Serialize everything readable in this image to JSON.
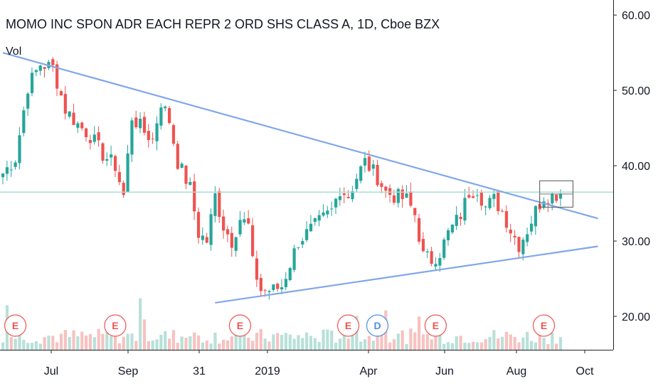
{
  "chart_data": {
    "type": "candlestick",
    "title": "MOMO INC SPON ADR EACH REPR 2 ORD SHS CLASS A, 1D, Cboe BZX",
    "volume_label": "Vol",
    "interval": "1D",
    "exchange": "Cboe BZX",
    "ylim": [
      15,
      62
    ],
    "y_ticks": [
      "60.00",
      "50.00",
      "40.00",
      "30.00",
      "20.00"
    ],
    "x_ticks": [
      "Jul",
      "Sep",
      "31",
      "2019",
      "Apr",
      "Jun",
      "Aug",
      "Oct"
    ],
    "price_series": [
      [
        0,
        39.0
      ],
      [
        3,
        41.0
      ],
      [
        6,
        50.5
      ],
      [
        9,
        53.5
      ],
      [
        12,
        53.0
      ],
      [
        15,
        47.5
      ],
      [
        18,
        45.5
      ],
      [
        21,
        44.0
      ],
      [
        24,
        41.5
      ],
      [
        27,
        40.0
      ],
      [
        29,
        36.0
      ],
      [
        31,
        46.5
      ],
      [
        34,
        44.5
      ],
      [
        36,
        43.5
      ],
      [
        38,
        48.5
      ],
      [
        40,
        46.0
      ],
      [
        42,
        40.5
      ],
      [
        45,
        37.0
      ],
      [
        47,
        31.0
      ],
      [
        49,
        30.0
      ],
      [
        51,
        36.0
      ],
      [
        53,
        32.0
      ],
      [
        55,
        30.0
      ],
      [
        57,
        33.0
      ],
      [
        59,
        32.0
      ],
      [
        60,
        27.0
      ],
      [
        62,
        23.5
      ],
      [
        65,
        23.5
      ],
      [
        67,
        24.0
      ],
      [
        69,
        27.0
      ],
      [
        71,
        30.0
      ],
      [
        74,
        31.5
      ],
      [
        77,
        33.0
      ],
      [
        79,
        34.0
      ],
      [
        81,
        37.0
      ],
      [
        83,
        36.0
      ],
      [
        85,
        38.5
      ],
      [
        87,
        40.5
      ],
      [
        90,
        38.5
      ],
      [
        92,
        36.5
      ],
      [
        94,
        36.0
      ],
      [
        97,
        35.5
      ],
      [
        99,
        33.5
      ],
      [
        101,
        28.0
      ],
      [
        103,
        27.5
      ],
      [
        105,
        28.5
      ],
      [
        107,
        31.0
      ],
      [
        110,
        33.5
      ],
      [
        112,
        36.5
      ],
      [
        114,
        37.0
      ],
      [
        116,
        34.5
      ],
      [
        118,
        35.5
      ],
      [
        120,
        34.0
      ],
      [
        122,
        31.5
      ],
      [
        124,
        29.5
      ],
      [
        126,
        31.5
      ],
      [
        128,
        34.0
      ],
      [
        130,
        36.0
      ],
      [
        132,
        36.0
      ],
      [
        134,
        36.5
      ]
    ],
    "trendlines": [
      {
        "name": "upper",
        "from": [
          0,
          55.0
        ],
        "to": [
          143,
          33.0
        ]
      },
      {
        "name": "lower",
        "from": [
          51,
          21.8
        ],
        "to": [
          143,
          29.3
        ]
      }
    ],
    "horizontal_line": {
      "value": 36.5
    },
    "consolidation_box": {
      "x": [
        129,
        137
      ],
      "y": [
        34.5,
        38.0
      ]
    },
    "event_markers": [
      {
        "label": "E",
        "x": 3
      },
      {
        "label": "E",
        "x": 27
      },
      {
        "label": "E",
        "x": 57
      },
      {
        "label": "E",
        "x": 83
      },
      {
        "label": "D",
        "x": 90
      },
      {
        "label": "E",
        "x": 104
      },
      {
        "label": "E",
        "x": 130
      }
    ],
    "colors": {
      "up": "#26a69a",
      "down": "#ef5350",
      "trendline": "#7fa7ea",
      "hline": "#a7dcd6",
      "earnings": "#ef5350",
      "dividend": "#4a90e2"
    }
  }
}
